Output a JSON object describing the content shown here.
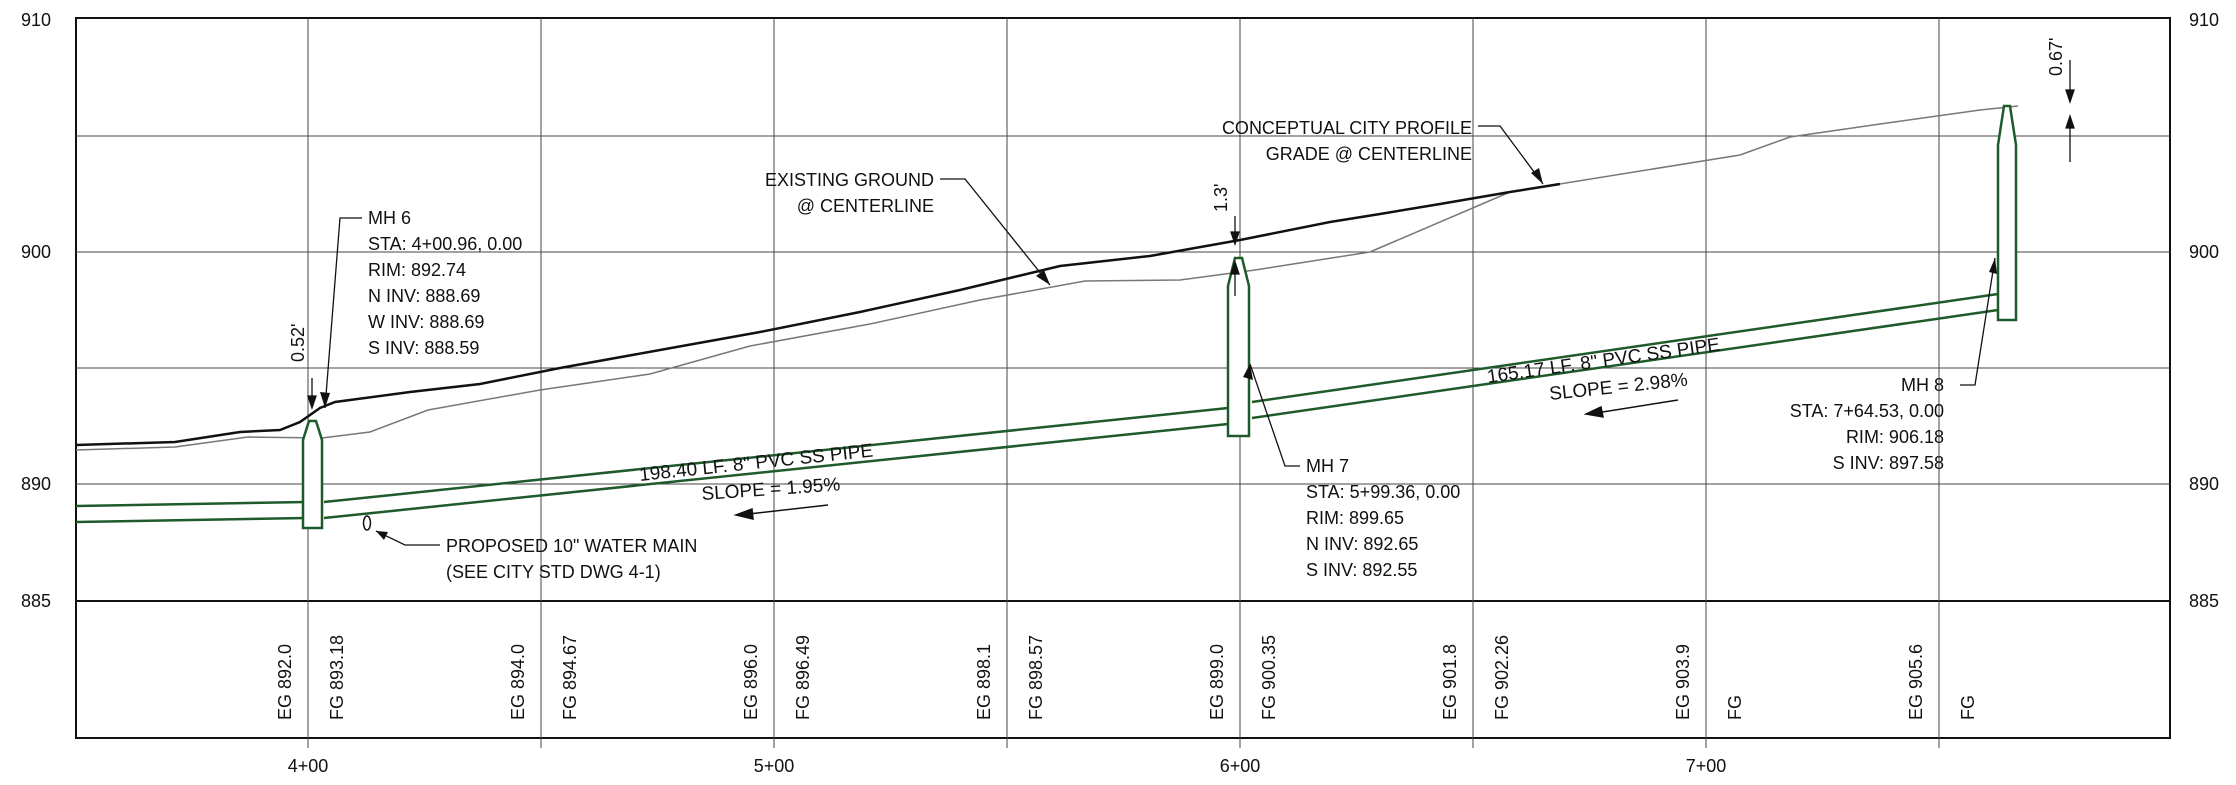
{
  "axis": {
    "elevation_labels": [
      "910",
      "900",
      "890",
      "885"
    ],
    "station_labels": [
      "4+00",
      "5+00",
      "6+00",
      "7+00"
    ]
  },
  "bottom_labels": [
    "EG 892.0",
    "FG 893.18",
    "EG 894.0",
    "FG 894.67",
    "EG 896.0",
    "FG 896.49",
    "EG 898.1",
    "FG 898.57",
    "EG 899.0",
    "FG 900.35",
    "EG 901.8",
    "FG 902.26",
    "EG 903.9",
    "FG",
    "EG 905.6",
    "FG"
  ],
  "manholes": {
    "mh6": [
      "MH 6",
      "STA: 4+00.96, 0.00",
      "RIM: 892.74",
      "N INV: 888.69",
      "W INV: 888.69",
      "S INV: 888.59"
    ],
    "mh7": [
      "MH 7",
      "STA: 5+99.36, 0.00",
      "RIM: 899.65",
      "N INV: 892.65",
      "S INV: 892.55"
    ],
    "mh8": [
      "MH 8",
      "STA: 7+64.53, 0.00",
      "RIM: 906.18",
      "S INV: 897.58"
    ]
  },
  "pipes": {
    "pipe1_label": "198.40 LF. 8\" PVC SS PIPE",
    "pipe1_slope": "SLOPE = 1.95%",
    "pipe2_label": "165.17 LF. 8\" PVC SS PIPE",
    "pipe2_slope": "SLOPE = 2.98%"
  },
  "callouts": {
    "existing_ground": [
      "EXISTING GROUND",
      "@ CENTERLINE"
    ],
    "conceptual": [
      "CONCEPTUAL CITY PROFILE",
      "GRADE @ CENTERLINE"
    ],
    "water_main": [
      "PROPOSED 10\" WATER MAIN",
      "(SEE CITY STD DWG 4-1)"
    ],
    "dim_mh6": "0.52'",
    "dim_mh7": "1.3'",
    "dim_mh8": "0.67'"
  },
  "colors": {
    "pipe": "#1e5a2a",
    "line": "#111111",
    "ground": "#777777",
    "grid": "#444444"
  }
}
